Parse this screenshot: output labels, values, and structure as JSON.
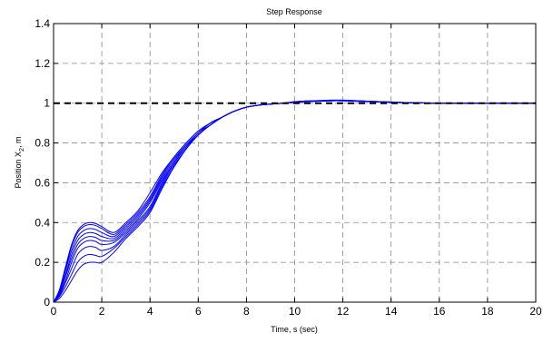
{
  "chart_data": {
    "type": "line",
    "title": "Step Response",
    "xlabel": "Time, s (sec)",
    "ylabel": "Position X",
    "ylabel_subscript": "2",
    "ylabel_suffix": ", m",
    "xlim": [
      0,
      20
    ],
    "ylim": [
      0,
      1.4
    ],
    "xticks": [
      0,
      2,
      4,
      6,
      8,
      10,
      12,
      14,
      16,
      18,
      20
    ],
    "yticks": [
      0,
      0.2,
      0.4,
      0.6,
      0.8,
      1,
      1.2,
      1.4
    ],
    "ytick_labels": [
      "0",
      "0.2",
      "0.4",
      "0.6",
      "0.8",
      "1",
      "1.2",
      "1.4"
    ],
    "grid": true,
    "reference_line": {
      "y": 1,
      "style": "dashed",
      "color": "#000000"
    },
    "series_color": "#0000ff",
    "x": [
      0,
      0.25,
      0.5,
      0.75,
      1,
      1.25,
      1.5,
      1.75,
      2,
      2.5,
      3,
      3.5,
      4,
      4.5,
      5,
      5.5,
      6,
      6.5,
      7,
      7.5,
      8,
      8.5,
      9,
      9.5,
      10,
      10.5,
      11,
      11.5,
      12,
      12.5,
      13,
      13.5,
      14,
      14.5,
      15,
      16,
      17,
      18,
      19,
      20
    ],
    "series": [
      {
        "values": [
          0,
          0.02,
          0.06,
          0.11,
          0.16,
          0.19,
          0.2,
          0.2,
          0.2,
          0.25,
          0.32,
          0.38,
          0.45,
          0.57,
          0.68,
          0.77,
          0.84,
          0.89,
          0.93,
          0.96,
          0.98,
          0.99,
          0.995,
          1.0,
          1.005,
          1.008,
          1.01,
          1.012,
          1.012,
          1.01,
          1.008,
          1.006,
          1.004,
          1.003,
          1.002,
          1.0,
          1.0,
          1.0,
          1.0,
          1.0
        ]
      },
      {
        "values": [
          0,
          0.03,
          0.08,
          0.14,
          0.2,
          0.23,
          0.24,
          0.235,
          0.23,
          0.27,
          0.33,
          0.39,
          0.46,
          0.58,
          0.68,
          0.77,
          0.84,
          0.89,
          0.93,
          0.96,
          0.98,
          0.99,
          0.995,
          1.0,
          1.005,
          1.008,
          1.01,
          1.012,
          1.012,
          1.01,
          1.008,
          1.006,
          1.004,
          1.003,
          1.002,
          1.0,
          1.0,
          1.0,
          1.0,
          1.0
        ]
      },
      {
        "values": [
          0,
          0.035,
          0.1,
          0.17,
          0.24,
          0.27,
          0.28,
          0.275,
          0.26,
          0.28,
          0.34,
          0.4,
          0.47,
          0.59,
          0.69,
          0.77,
          0.84,
          0.89,
          0.93,
          0.96,
          0.98,
          0.99,
          0.995,
          1.0,
          1.005,
          1.008,
          1.01,
          1.012,
          1.012,
          1.01,
          1.008,
          1.006,
          1.004,
          1.003,
          1.002,
          1.0,
          1.0,
          1.0,
          1.0,
          1.0
        ]
      },
      {
        "values": [
          0,
          0.04,
          0.11,
          0.2,
          0.27,
          0.3,
          0.31,
          0.305,
          0.29,
          0.3,
          0.35,
          0.41,
          0.48,
          0.6,
          0.7,
          0.78,
          0.84,
          0.89,
          0.93,
          0.96,
          0.98,
          0.99,
          0.995,
          1.0,
          1.006,
          1.009,
          1.011,
          1.013,
          1.013,
          1.011,
          1.009,
          1.007,
          1.005,
          1.003,
          1.002,
          1.0,
          1.0,
          1.0,
          1.0,
          1.0
        ]
      },
      {
        "values": [
          0,
          0.045,
          0.13,
          0.22,
          0.29,
          0.32,
          0.33,
          0.325,
          0.31,
          0.31,
          0.36,
          0.42,
          0.5,
          0.61,
          0.7,
          0.78,
          0.85,
          0.89,
          0.93,
          0.96,
          0.98,
          0.99,
          0.995,
          1.0,
          1.006,
          1.009,
          1.011,
          1.013,
          1.013,
          1.011,
          1.009,
          1.007,
          1.005,
          1.003,
          1.002,
          1.0,
          1.0,
          1.0,
          1.0,
          1.0
        ]
      },
      {
        "values": [
          0,
          0.05,
          0.14,
          0.24,
          0.31,
          0.34,
          0.35,
          0.345,
          0.33,
          0.32,
          0.37,
          0.43,
          0.51,
          0.62,
          0.71,
          0.79,
          0.85,
          0.9,
          0.93,
          0.96,
          0.98,
          0.99,
          0.995,
          1.0,
          1.006,
          1.01,
          1.012,
          1.014,
          1.014,
          1.012,
          1.01,
          1.008,
          1.005,
          1.003,
          1.002,
          1.0,
          1.0,
          1.0,
          1.0,
          1.0
        ]
      },
      {
        "values": [
          0,
          0.055,
          0.16,
          0.26,
          0.33,
          0.36,
          0.37,
          0.365,
          0.35,
          0.33,
          0.38,
          0.44,
          0.52,
          0.63,
          0.72,
          0.79,
          0.85,
          0.9,
          0.93,
          0.96,
          0.98,
          0.99,
          0.995,
          1.0,
          1.006,
          1.01,
          1.012,
          1.014,
          1.014,
          1.012,
          1.01,
          1.008,
          1.005,
          1.003,
          1.002,
          1.0,
          1.0,
          1.0,
          1.0,
          1.0
        ]
      },
      {
        "values": [
          0,
          0.06,
          0.17,
          0.28,
          0.35,
          0.38,
          0.39,
          0.385,
          0.37,
          0.34,
          0.39,
          0.45,
          0.53,
          0.64,
          0.73,
          0.8,
          0.86,
          0.9,
          0.93,
          0.96,
          0.98,
          0.99,
          0.995,
          1.0,
          1.007,
          1.011,
          1.013,
          1.015,
          1.015,
          1.013,
          1.01,
          1.008,
          1.006,
          1.004,
          1.002,
          1.0,
          1.0,
          1.0,
          1.0,
          1.0
        ]
      },
      {
        "values": [
          0,
          0.065,
          0.18,
          0.29,
          0.36,
          0.39,
          0.4,
          0.395,
          0.38,
          0.35,
          0.4,
          0.46,
          0.55,
          0.65,
          0.73,
          0.8,
          0.86,
          0.9,
          0.93,
          0.96,
          0.98,
          0.99,
          0.995,
          1.0,
          1.007,
          1.011,
          1.013,
          1.015,
          1.015,
          1.013,
          1.01,
          1.008,
          1.006,
          1.004,
          1.002,
          1.0,
          1.0,
          1.0,
          1.0,
          1.0
        ]
      }
    ]
  }
}
